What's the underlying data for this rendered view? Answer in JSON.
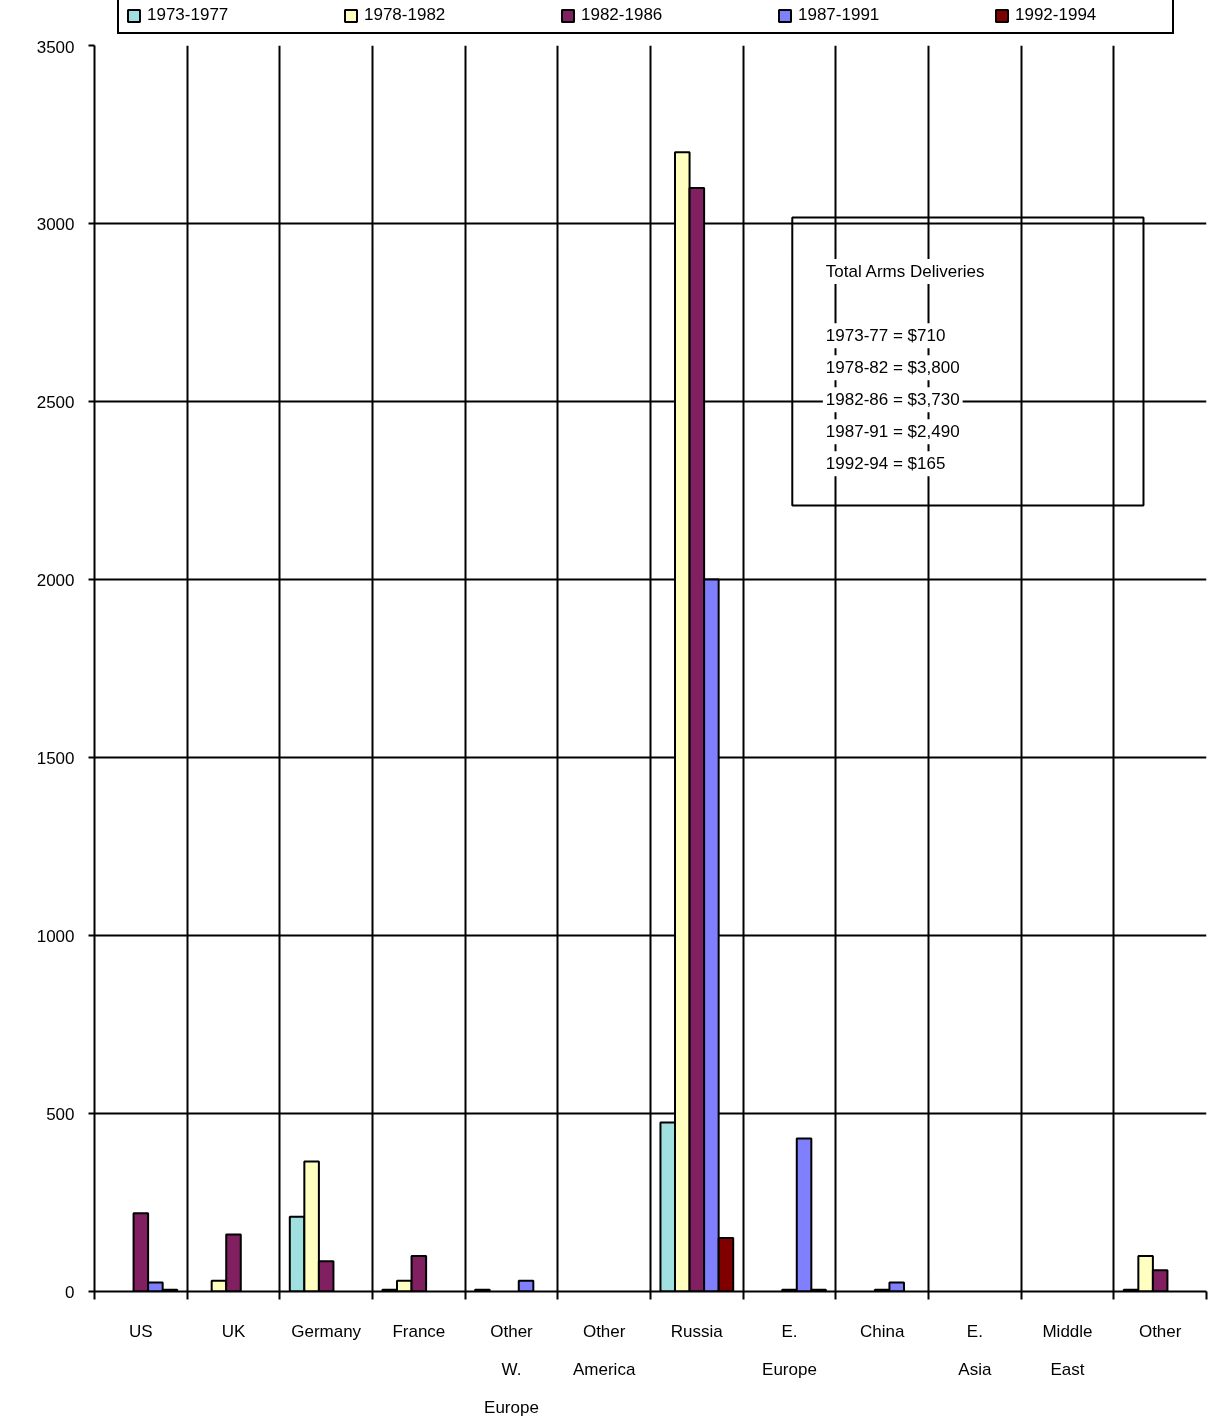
{
  "chart_data": {
    "type": "bar",
    "categories": [
      "US",
      "UK",
      "Germany",
      "France",
      "Other W. Europe",
      "Other America",
      "Russia",
      "E. Europe",
      "China",
      "E. Asia",
      "Middle East",
      "Other"
    ],
    "series": [
      {
        "name": "1973-1977",
        "color": "#a0e0e0",
        "values": [
          null,
          null,
          210,
          5,
          5,
          null,
          475,
          null,
          null,
          null,
          null,
          5
        ]
      },
      {
        "name": "1978-1982",
        "color": "#ffffc0",
        "values": [
          null,
          30,
          365,
          30,
          null,
          null,
          3200,
          null,
          null,
          null,
          null,
          100
        ]
      },
      {
        "name": "1982-1986",
        "color": "#802060",
        "values": [
          220,
          160,
          85,
          100,
          null,
          null,
          3100,
          5,
          5,
          null,
          null,
          60
        ]
      },
      {
        "name": "1987-1991",
        "color": "#8080ff",
        "values": [
          25,
          null,
          null,
          null,
          30,
          null,
          2000,
          430,
          25,
          null,
          null,
          null
        ]
      },
      {
        "name": "1992-1994",
        "color": "#800000",
        "values": [
          5,
          null,
          null,
          null,
          null,
          null,
          150,
          5,
          null,
          null,
          null,
          null
        ]
      }
    ],
    "ylim": [
      0,
      3500
    ],
    "yticks": [
      0,
      500,
      1000,
      1500,
      2000,
      2500,
      3000,
      3500
    ],
    "grid": true,
    "legend": "top",
    "annotations": [
      "Total Arms Deliveries",
      "1973-77 = $710",
      "1978-82 = $3,800",
      "1982-86 = $3,730",
      "1987-91 = $2,490",
      "1992-94 = $165"
    ]
  }
}
